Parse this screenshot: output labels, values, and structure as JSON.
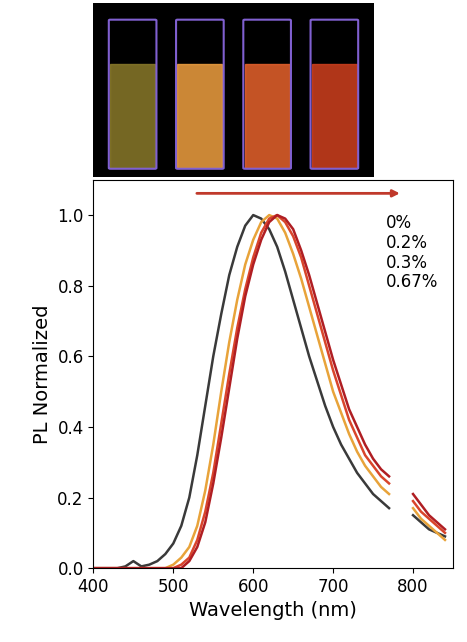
{
  "chart_data": {
    "type": "line",
    "x_label": "Wavelength (nm)",
    "y_label": "PL Normalized",
    "x": [
      400,
      410,
      420,
      430,
      440,
      450,
      460,
      470,
      480,
      490,
      500,
      510,
      520,
      530,
      540,
      550,
      560,
      570,
      580,
      590,
      600,
      610,
      620,
      630,
      640,
      650,
      660,
      670,
      680,
      690,
      700,
      710,
      720,
      730,
      740,
      750,
      760,
      770,
      780,
      790,
      800,
      810,
      820,
      830,
      840
    ],
    "series": [
      {
        "name": "0%",
        "color": "#3a3a3a",
        "values": [
          0,
          0,
          0,
          0,
          0.005,
          0.02,
          0.005,
          0.01,
          0.02,
          0.04,
          0.07,
          0.12,
          0.2,
          0.32,
          0.46,
          0.6,
          0.72,
          0.83,
          0.91,
          0.97,
          1.0,
          0.99,
          0.96,
          0.91,
          0.84,
          0.76,
          0.68,
          0.6,
          0.53,
          0.46,
          0.4,
          0.35,
          0.31,
          0.27,
          0.24,
          0.21,
          0.19,
          0.17,
          null,
          null,
          0.15,
          0.13,
          0.11,
          0.1,
          0.09
        ]
      },
      {
        "name": "0.2%",
        "color": "#e8a33a",
        "values": [
          0,
          0,
          0,
          0,
          0,
          0,
          0,
          0,
          0,
          0,
          0.01,
          0.03,
          0.06,
          0.12,
          0.22,
          0.35,
          0.5,
          0.64,
          0.76,
          0.86,
          0.93,
          0.98,
          1.0,
          0.99,
          0.95,
          0.89,
          0.82,
          0.74,
          0.66,
          0.58,
          0.5,
          0.44,
          0.38,
          0.33,
          0.29,
          0.26,
          0.23,
          0.21,
          null,
          null,
          0.17,
          0.14,
          0.12,
          0.1,
          0.08
        ]
      },
      {
        "name": "0.3%",
        "color": "#d9452b",
        "values": [
          0,
          0,
          0,
          0,
          0,
          0,
          0,
          0,
          0,
          0,
          0,
          0.01,
          0.03,
          0.08,
          0.16,
          0.27,
          0.41,
          0.55,
          0.68,
          0.79,
          0.88,
          0.95,
          0.99,
          1.0,
          0.98,
          0.94,
          0.88,
          0.8,
          0.72,
          0.64,
          0.56,
          0.49,
          0.42,
          0.37,
          0.32,
          0.29,
          0.26,
          0.24,
          null,
          null,
          0.19,
          0.16,
          0.14,
          0.12,
          0.1
        ]
      },
      {
        "name": "0.67%",
        "color": "#b01e23",
        "values": [
          0,
          0,
          0,
          0,
          0,
          0,
          0,
          0,
          0,
          0,
          0,
          0,
          0.02,
          0.06,
          0.13,
          0.24,
          0.37,
          0.51,
          0.65,
          0.77,
          0.86,
          0.93,
          0.98,
          1.0,
          0.99,
          0.96,
          0.9,
          0.83,
          0.75,
          0.67,
          0.59,
          0.52,
          0.45,
          0.4,
          0.35,
          0.31,
          0.28,
          0.26,
          null,
          null,
          0.21,
          0.18,
          0.15,
          0.13,
          0.11
        ]
      }
    ],
    "xlim": [
      400,
      850
    ],
    "ylim": [
      0,
      1.1
    ],
    "xticks": [
      400,
      500,
      600,
      700,
      800
    ],
    "yticks": [
      {
        "value": 0,
        "label": "0.0"
      },
      {
        "value": 0.2,
        "label": "0.2"
      },
      {
        "value": 0.4,
        "label": "0.4"
      },
      {
        "value": 0.6,
        "label": "0.6"
      },
      {
        "value": 0.8,
        "label": "0.8"
      },
      {
        "value": 1.0,
        "label": "1.0"
      }
    ],
    "legend": "upper right",
    "grid": false
  }
}
